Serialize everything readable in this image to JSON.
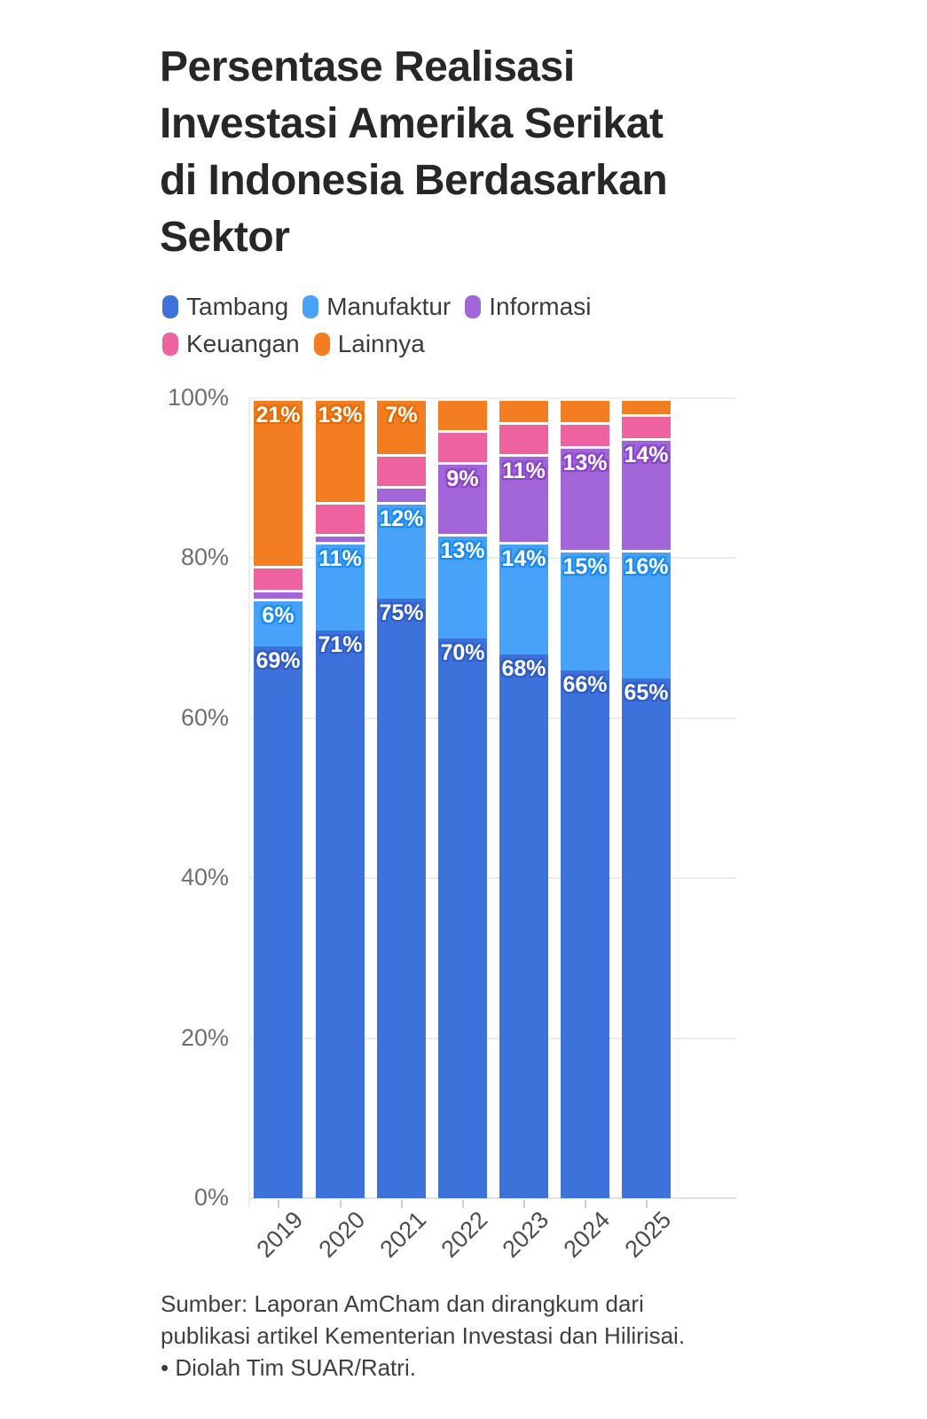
{
  "title": {
    "full": "Persentase Realisasi Investasi Amerika Serikat di Indonesia Berdasarkan Sektor",
    "lines": [
      "Persentase Realisasi",
      "Investasi Amerika Serikat",
      "di Indonesia Berdasarkan",
      "Sektor"
    ]
  },
  "legend": [
    {
      "label": "Tambang",
      "color": "#3d72db"
    },
    {
      "label": "Manufaktur",
      "color": "#47a2f8"
    },
    {
      "label": "Informasi",
      "color": "#a266d8"
    },
    {
      "label": "Keuangan",
      "color": "#ee639f"
    },
    {
      "label": "Lainnya",
      "color": "#f37e21"
    }
  ],
  "chart_data": {
    "type": "bar",
    "stacked": true,
    "categories": [
      "2019",
      "2020",
      "2021",
      "2022",
      "2023",
      "2024",
      "2025"
    ],
    "series": [
      {
        "name": "Tambang",
        "color": "#3d72db",
        "halo": "#2f5cc6",
        "values": [
          69,
          71,
          75,
          70,
          68,
          66,
          65
        ],
        "labels": [
          "69%",
          "71%",
          "75%",
          "70%",
          "68%",
          "66%",
          "65%"
        ]
      },
      {
        "name": "Manufaktur",
        "color": "#47a2f8",
        "halo": "#1b8bf0",
        "values": [
          6,
          11,
          12,
          13,
          14,
          15,
          16
        ],
        "labels": [
          "6%",
          "11%",
          "12%",
          "13%",
          "14%",
          "15%",
          "16%"
        ]
      },
      {
        "name": "Informasi",
        "color": "#a266d8",
        "halo": "#8a44c8",
        "values": [
          1,
          1,
          2,
          9,
          11,
          13,
          14
        ],
        "labels": [
          "",
          "",
          "",
          "9%",
          "11%",
          "13%",
          "14%"
        ]
      },
      {
        "name": "Keuangan",
        "color": "#ee639f",
        "halo": "#e23a85",
        "values": [
          3,
          4,
          4,
          4,
          4,
          3,
          3
        ],
        "labels": [
          "",
          "",
          "",
          "",
          "",
          "",
          ""
        ]
      },
      {
        "name": "Lainnya",
        "color": "#f37e21",
        "halo": "#e26b0a",
        "values": [
          21,
          13,
          7,
          4,
          3,
          3,
          2
        ],
        "labels": [
          "21%",
          "13%",
          "7%",
          "",
          "",
          "",
          ""
        ]
      }
    ],
    "y_ticks": [
      "100%",
      "80%",
      "60%",
      "40%",
      "20%",
      "0%"
    ],
    "ylim": [
      0,
      100
    ],
    "grid": true,
    "legend_position": "top",
    "xlabel": "",
    "ylabel": ""
  },
  "source": {
    "lines": [
      "Sumber: Laporan AmCham dan dirangkum dari",
      "publikasi artikel Kementerian Investasi dan Hilirisai.",
      "• Diolah Tim SUAR/Ratri."
    ]
  }
}
